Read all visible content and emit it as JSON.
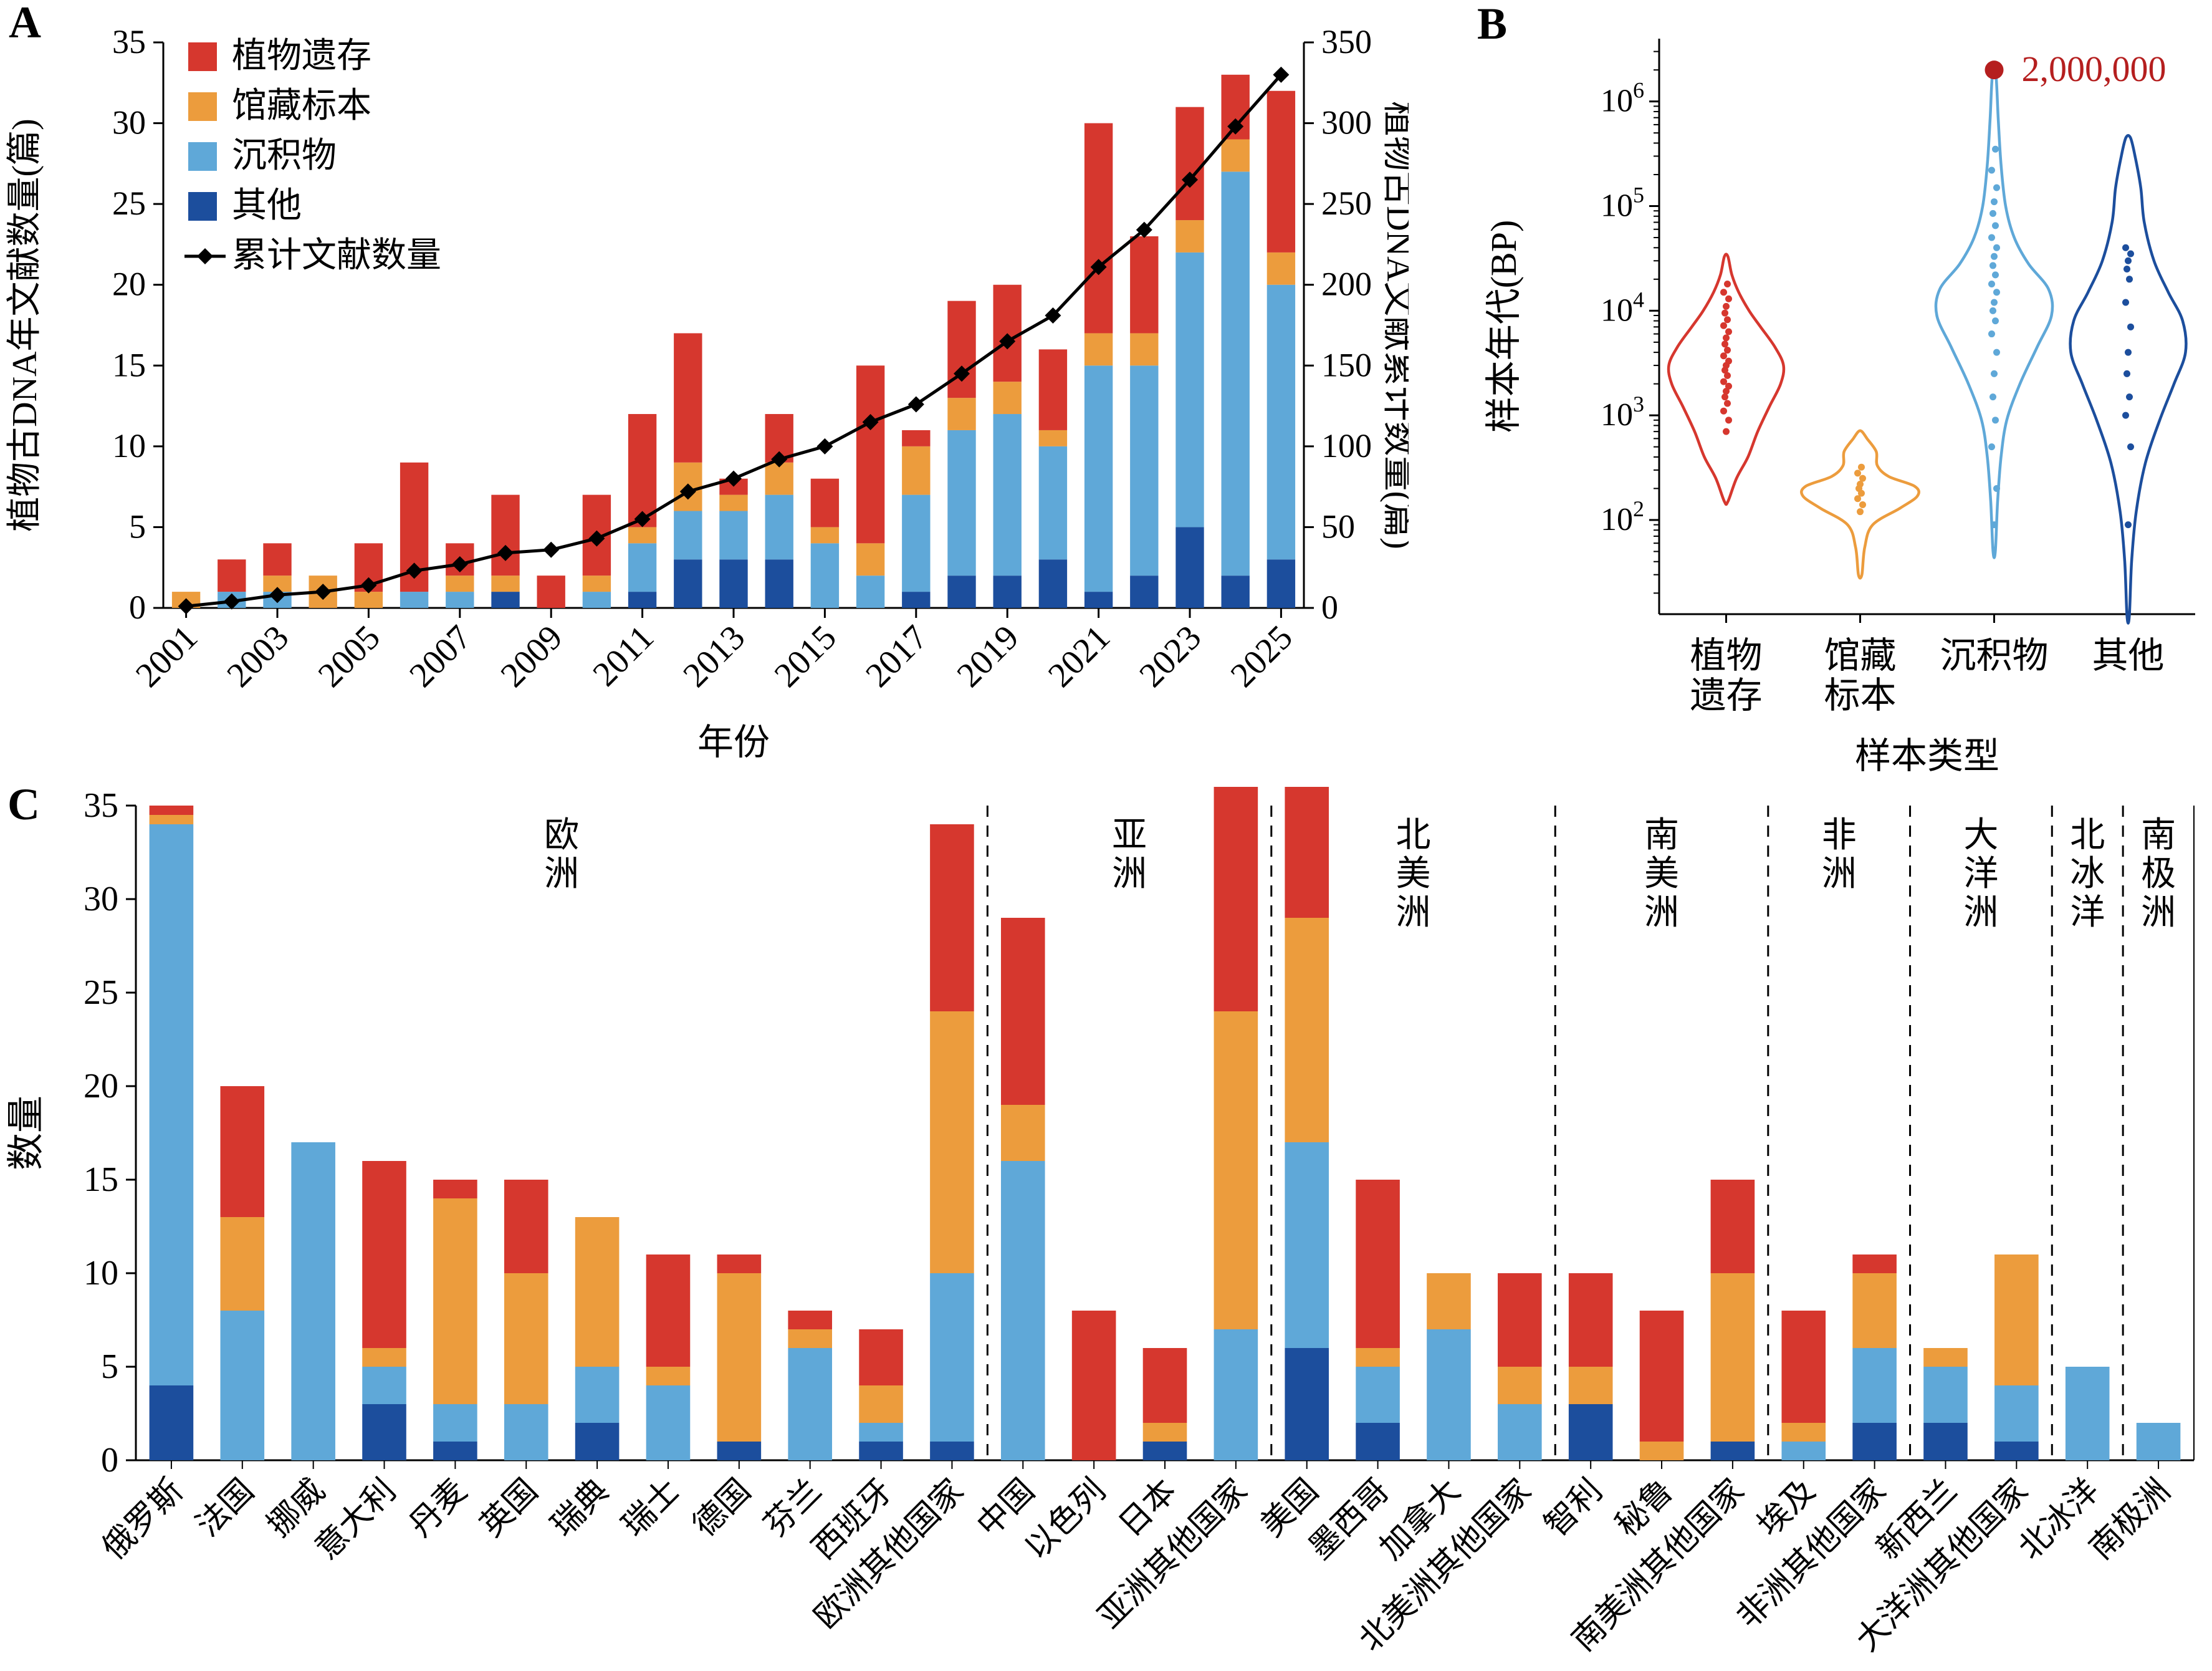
{
  "figure": {
    "background": "#ffffff"
  },
  "colors": {
    "plant_remains": "#d6372e",
    "herbarium": "#ec9c3d",
    "sediment": "#5fa8d8",
    "other": "#1c4e9d",
    "line": "#000000",
    "outlier": "#b51f1f"
  },
  "chart_data": [
    {
      "id": "panelA",
      "panel_label": "A",
      "type": "bar+line",
      "x_label": "年份",
      "y_left_label": "植物古DNA年文献数量(篇)",
      "y_right_label": "植物古DNA文献累计数量(篇)",
      "ylim_left": [
        0,
        35
      ],
      "ylim_right": [
        0,
        350
      ],
      "y_left_ticks": [
        0,
        5,
        10,
        15,
        20,
        25,
        30,
        35
      ],
      "y_right_ticks": [
        0,
        50,
        100,
        150,
        200,
        250,
        300,
        350
      ],
      "categories": [
        2001,
        2002,
        2003,
        2004,
        2005,
        2006,
        2007,
        2008,
        2009,
        2010,
        2011,
        2012,
        2013,
        2014,
        2015,
        2016,
        2017,
        2018,
        2019,
        2020,
        2021,
        2022,
        2023,
        2024,
        2025
      ],
      "labeled_years": [
        2001,
        2003,
        2005,
        2007,
        2009,
        2011,
        2013,
        2015,
        2017,
        2019,
        2021,
        2023,
        2025
      ],
      "series": [
        {
          "name": "其他",
          "color": "other",
          "values": [
            0,
            0,
            0,
            0,
            0,
            0,
            0,
            1,
            0,
            0,
            1,
            3,
            3,
            3,
            0,
            0,
            1,
            2,
            2,
            3,
            1,
            2,
            5,
            2,
            3
          ]
        },
        {
          "name": "沉积物",
          "color": "sediment",
          "values": [
            0,
            1,
            1,
            0,
            0,
            1,
            1,
            0,
            0,
            1,
            3,
            3,
            3,
            4,
            4,
            2,
            6,
            9,
            10,
            7,
            14,
            13,
            17,
            25,
            17
          ]
        },
        {
          "name": "馆藏标本",
          "color": "herbarium",
          "values": [
            1,
            0,
            1,
            2,
            1,
            0,
            1,
            1,
            0,
            1,
            1,
            3,
            1,
            2,
            1,
            2,
            3,
            2,
            2,
            1,
            2,
            2,
            2,
            2,
            2
          ]
        },
        {
          "name": "植物遗存",
          "color": "plant_remains",
          "values": [
            0,
            2,
            2,
            0,
            3,
            8,
            2,
            5,
            2,
            5,
            7,
            8,
            1,
            3,
            3,
            11,
            1,
            6,
            6,
            5,
            13,
            6,
            7,
            4,
            10
          ]
        }
      ],
      "line_series": {
        "name": "累计文献数量",
        "values": [
          1,
          4,
          8,
          10,
          14,
          23,
          27,
          34,
          36,
          43,
          55,
          72,
          80,
          92,
          100,
          115,
          126,
          145,
          165,
          181,
          211,
          234,
          265,
          298,
          330
        ]
      },
      "legend": [
        {
          "label": "植物遗存",
          "color": "plant_remains",
          "type": "square"
        },
        {
          "label": "馆藏标本",
          "color": "herbarium",
          "type": "square"
        },
        {
          "label": "沉积物",
          "color": "sediment",
          "type": "square"
        },
        {
          "label": "其他",
          "color": "other",
          "type": "square"
        },
        {
          "label": "累计文献数量",
          "color": "line",
          "type": "line"
        }
      ]
    },
    {
      "id": "panelB",
      "panel_label": "B",
      "type": "violin",
      "x_label": "样本类型",
      "y_label": "样本年代(BP)",
      "y_scale": "log10",
      "y_log_domain": [
        1.1,
        6.6
      ],
      "y_major_ticks": [
        100,
        1000,
        10000,
        100000,
        1000000
      ],
      "categories": [
        [
          "植物",
          "遗存"
        ],
        [
          "馆藏",
          "标本"
        ],
        [
          "沉积物"
        ],
        [
          "其他"
        ]
      ],
      "violins": [
        {
          "name": "植物遗存",
          "color": "plant_remains",
          "profile": [
            [
              150,
              0.03
            ],
            [
              250,
              0.18
            ],
            [
              400,
              0.38
            ],
            [
              700,
              0.55
            ],
            [
              1200,
              0.75
            ],
            [
              2000,
              0.95
            ],
            [
              3000,
              1.0
            ],
            [
              4500,
              0.85
            ],
            [
              7000,
              0.6
            ],
            [
              10000,
              0.4
            ],
            [
              15000,
              0.22
            ],
            [
              22000,
              0.1
            ],
            [
              33000,
              0.03
            ]
          ],
          "dots": [
            700,
            900,
            1100,
            1300,
            1500,
            1700,
            1900,
            2100,
            2400,
            2700,
            3000,
            3300,
            3700,
            4200,
            4800,
            5500,
            6300,
            7200,
            8200,
            9500,
            11000,
            13000,
            15000,
            18000
          ]
        },
        {
          "name": "馆藏标本",
          "color": "herbarium",
          "profile": [
            [
              30,
              0.03
            ],
            [
              55,
              0.08
            ],
            [
              90,
              0.22
            ],
            [
              130,
              0.7
            ],
            [
              170,
              1.0
            ],
            [
              210,
              0.95
            ],
            [
              260,
              0.5
            ],
            [
              330,
              0.3
            ],
            [
              450,
              0.28
            ],
            [
              600,
              0.12
            ],
            [
              700,
              0.03
            ]
          ],
          "dots": [
            120,
            140,
            160,
            180,
            200,
            220,
            250,
            280,
            320
          ]
        },
        {
          "name": "沉积物",
          "color": "sediment",
          "profile": [
            [
              50,
              0.02
            ],
            [
              150,
              0.06
            ],
            [
              400,
              0.12
            ],
            [
              900,
              0.22
            ],
            [
              2000,
              0.45
            ],
            [
              4500,
              0.75
            ],
            [
              9000,
              1.0
            ],
            [
              16000,
              0.95
            ],
            [
              28000,
              0.6
            ],
            [
              50000,
              0.35
            ],
            [
              100000,
              0.2
            ],
            [
              250000,
              0.12
            ],
            [
              700000,
              0.07
            ],
            [
              1800000,
              0.03
            ]
          ],
          "dots": [
            90,
            200,
            500,
            900,
            1500,
            2500,
            4000,
            6000,
            8000,
            10000,
            12000,
            15000,
            18000,
            22000,
            27000,
            33000,
            40000,
            50000,
            65000,
            85000,
            110000,
            150000,
            220000,
            350000
          ]
        },
        {
          "name": "其他",
          "color": "other",
          "profile": [
            [
              12,
              0.02
            ],
            [
              40,
              0.06
            ],
            [
              120,
              0.14
            ],
            [
              350,
              0.3
            ],
            [
              900,
              0.55
            ],
            [
              2000,
              0.8
            ],
            [
              4000,
              1.0
            ],
            [
              8000,
              0.95
            ],
            [
              15000,
              0.7
            ],
            [
              30000,
              0.45
            ],
            [
              70000,
              0.28
            ],
            [
              150000,
              0.22
            ],
            [
              300000,
              0.12
            ],
            [
              450000,
              0.04
            ]
          ],
          "dots": [
            90,
            500,
            1000,
            1500,
            2500,
            4000,
            7000,
            12000,
            20000,
            25000,
            30000,
            35000,
            40000
          ]
        }
      ],
      "outlier": {
        "category_index": 2,
        "value": 2000000,
        "label": "2,000,000"
      }
    },
    {
      "id": "panelC",
      "panel_label": "C",
      "type": "bar",
      "y_label": "数量",
      "ylim": [
        0,
        35
      ],
      "y_ticks": [
        0,
        5,
        10,
        15,
        20,
        25,
        30,
        35
      ],
      "categories": [
        "俄罗斯",
        "法国",
        "挪威",
        "意大利",
        "丹麦",
        "英国",
        "瑞典",
        "瑞士",
        "德国",
        "芬兰",
        "西班牙",
        "欧洲其他国家",
        "中国",
        "以色列",
        "日本",
        "亚洲其他国家",
        "美国",
        "墨西哥",
        "加拿大",
        "北美洲其他国家",
        "智利",
        "秘鲁",
        "南美洲其他国家",
        "埃及",
        "非洲其他国家",
        "新西兰",
        "大洋洲其他国家",
        "北冰洋",
        "南极洲"
      ],
      "series": [
        {
          "name": "其他",
          "color": "other",
          "values": [
            4,
            0,
            0,
            3,
            1,
            0,
            2,
            0,
            1,
            0,
            1,
            1,
            0,
            0,
            1,
            0,
            6,
            2,
            0,
            0,
            3,
            0,
            1,
            0,
            2,
            2,
            1,
            0,
            0
          ]
        },
        {
          "name": "沉积物",
          "color": "sediment",
          "values": [
            30,
            8,
            17,
            2,
            2,
            3,
            3,
            4,
            0,
            6,
            1,
            9,
            16,
            0,
            0,
            7,
            11,
            3,
            7,
            3,
            0,
            0,
            0,
            1,
            4,
            3,
            3,
            5,
            2
          ]
        },
        {
          "name": "馆藏标本",
          "color": "herbarium",
          "values": [
            0.5,
            5,
            0,
            1,
            11,
            7,
            8,
            1,
            9,
            1,
            2,
            14,
            3,
            0,
            1,
            17,
            12,
            1,
            3,
            2,
            2,
            1,
            9,
            1,
            4,
            1,
            7,
            0,
            0
          ]
        },
        {
          "name": "植物遗存",
          "color": "plant_remains",
          "values": [
            0.5,
            7,
            0,
            10,
            1,
            5,
            0,
            6,
            1,
            1,
            3,
            10,
            10,
            8,
            4,
            12,
            7,
            9,
            0,
            5,
            5,
            7,
            5,
            6,
            1,
            0,
            0,
            0,
            0
          ]
        }
      ],
      "groups": [
        {
          "label": "欧洲",
          "from": 0,
          "to": 11
        },
        {
          "label": "亚洲",
          "from": 12,
          "to": 15
        },
        {
          "label": "北美洲",
          "from": 16,
          "to": 19
        },
        {
          "label": "南美洲",
          "from": 20,
          "to": 22
        },
        {
          "label": "非洲",
          "from": 23,
          "to": 24
        },
        {
          "label": "大洋洲",
          "from": 25,
          "to": 26
        },
        {
          "label": "北冰洋",
          "from": 27,
          "to": 27
        },
        {
          "label": "南极洲",
          "from": 28,
          "to": 28
        }
      ]
    }
  ]
}
